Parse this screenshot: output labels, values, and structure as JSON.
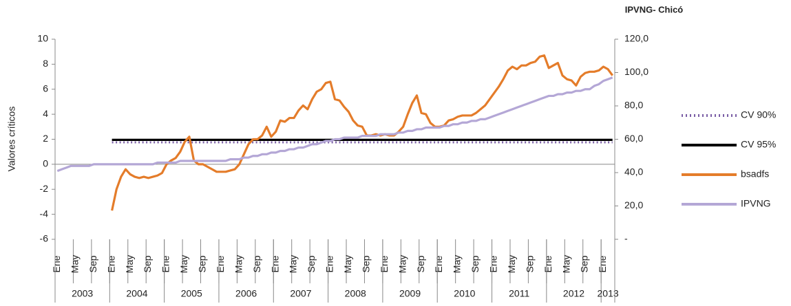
{
  "chart_data": {
    "type": "line",
    "title": "IPVNG- Chicó",
    "y_label": "Valores críticos",
    "categories": [
      "Ene",
      null,
      null,
      null,
      "May",
      null,
      null,
      null,
      "Sep",
      null,
      null,
      null,
      "Ene",
      null,
      null,
      null,
      "May",
      null,
      null,
      null,
      "Sep",
      null,
      null,
      null,
      "Ene",
      null,
      null,
      null,
      "May",
      null,
      null,
      null,
      "Sep",
      null,
      null,
      null,
      "Ene",
      null,
      null,
      null,
      "May",
      null,
      null,
      null,
      "Sep",
      null,
      null,
      null,
      "Ene",
      null,
      null,
      null,
      "May",
      null,
      null,
      null,
      "Sep",
      null,
      null,
      null,
      "Ene",
      null,
      null,
      null,
      "May",
      null,
      null,
      null,
      "Sep",
      null,
      null,
      null,
      "Ene",
      null,
      null,
      null,
      "May",
      null,
      null,
      null,
      "Sep",
      null,
      null,
      null,
      "Ene",
      null,
      null,
      null,
      "May",
      null,
      null,
      null,
      "Sep",
      null,
      null,
      null,
      "Ene",
      null,
      null,
      null,
      "May",
      null,
      null,
      null,
      "Sep",
      null,
      null,
      null,
      "Ene",
      null,
      null,
      null,
      "May",
      null,
      null,
      null,
      "Sep",
      null,
      null,
      null,
      "Ene",
      null,
      null
    ],
    "year_groups": [
      "2003",
      "2004",
      "2005",
      "2006",
      "2007",
      "2008",
      "2009",
      "2010",
      "2011",
      "2012",
      "2013"
    ],
    "ylim": [
      -6,
      10
    ],
    "yticks": [
      -6,
      -4,
      -2,
      0,
      2,
      4,
      6,
      8,
      10
    ],
    "y2lim": [
      0,
      120
    ],
    "y2ticks": [
      {
        "value": 0,
        "label": "-"
      },
      {
        "value": 20,
        "label": "20,0"
      },
      {
        "value": 40,
        "label": "40,0"
      },
      {
        "value": 60,
        "label": "60,0"
      },
      {
        "value": 80,
        "label": "80,0"
      },
      {
        "value": 100,
        "label": "100,0"
      },
      {
        "value": 120,
        "label": "120,0"
      }
    ],
    "legend": "right",
    "series": [
      {
        "name": "CV 90%",
        "color": "#7b5fa6",
        "dash": "dotted",
        "values": [
          null,
          null,
          null,
          null,
          null,
          null,
          null,
          null,
          null,
          null,
          null,
          null,
          1.75,
          1.75,
          1.75,
          1.75,
          1.75,
          1.75,
          1.75,
          1.75,
          1.75,
          1.75,
          1.75,
          1.75,
          1.75,
          1.75,
          1.75,
          1.75,
          1.75,
          1.75,
          1.75,
          1.75,
          1.75,
          1.75,
          1.75,
          1.75,
          1.75,
          1.75,
          1.75,
          1.75,
          1.75,
          1.75,
          1.75,
          1.75,
          1.75,
          1.75,
          1.75,
          1.75,
          1.75,
          1.75,
          1.75,
          1.75,
          1.75,
          1.75,
          1.75,
          1.75,
          1.75,
          1.75,
          1.75,
          1.75,
          1.75,
          1.75,
          1.75,
          1.75,
          1.75,
          1.75,
          1.75,
          1.75,
          1.75,
          1.75,
          1.75,
          1.75,
          1.75,
          1.75,
          1.75,
          1.75,
          1.75,
          1.75,
          1.75,
          1.75,
          1.75,
          1.75,
          1.75,
          1.75,
          1.75,
          1.75,
          1.75,
          1.75,
          1.75,
          1.75,
          1.75,
          1.75,
          1.75,
          1.75,
          1.75,
          1.75,
          1.75,
          1.75,
          1.75,
          1.75,
          1.75,
          1.75,
          1.75,
          1.75,
          1.75,
          1.75,
          1.75,
          1.75,
          1.75,
          1.75,
          1.75,
          1.75,
          1.75,
          1.75,
          1.75,
          1.75,
          1.75,
          1.75,
          1.75,
          1.75,
          1.75,
          1.75,
          1.75
        ]
      },
      {
        "name": "CV 95%",
        "color": "#000000",
        "values": [
          null,
          null,
          null,
          null,
          null,
          null,
          null,
          null,
          null,
          null,
          null,
          null,
          1.95,
          1.95,
          1.95,
          1.95,
          1.95,
          1.95,
          1.95,
          1.95,
          1.95,
          1.95,
          1.95,
          1.95,
          1.95,
          1.95,
          1.95,
          1.95,
          1.95,
          1.95,
          1.95,
          1.95,
          1.95,
          1.95,
          1.95,
          1.95,
          1.95,
          1.95,
          1.95,
          1.95,
          1.95,
          1.95,
          1.95,
          1.95,
          1.95,
          1.95,
          1.95,
          1.95,
          1.95,
          1.95,
          1.95,
          1.95,
          1.95,
          1.95,
          1.95,
          1.95,
          1.95,
          1.95,
          1.95,
          1.95,
          1.95,
          1.95,
          1.95,
          1.95,
          1.95,
          1.95,
          1.95,
          1.95,
          1.95,
          1.95,
          1.95,
          1.95,
          1.95,
          1.95,
          1.95,
          1.95,
          1.95,
          1.95,
          1.95,
          1.95,
          1.95,
          1.95,
          1.95,
          1.95,
          1.95,
          1.95,
          1.95,
          1.95,
          1.95,
          1.95,
          1.95,
          1.95,
          1.95,
          1.95,
          1.95,
          1.95,
          1.95,
          1.95,
          1.95,
          1.95,
          1.95,
          1.95,
          1.95,
          1.95,
          1.95,
          1.95,
          1.95,
          1.95,
          1.95,
          1.95,
          1.95,
          1.95,
          1.95,
          1.95,
          1.95,
          1.95,
          1.95,
          1.95,
          1.95,
          1.95,
          1.95,
          1.95,
          1.95
        ]
      },
      {
        "name": "bsadfs",
        "color": "#e47c2a",
        "values": [
          null,
          null,
          null,
          null,
          null,
          null,
          null,
          null,
          null,
          null,
          null,
          null,
          -3.7,
          -2.0,
          -1.0,
          -0.4,
          -0.8,
          -1.0,
          -1.1,
          -1.0,
          -1.1,
          -1.0,
          -0.9,
          -0.7,
          0.0,
          0.3,
          0.5,
          1.0,
          1.8,
          2.2,
          0.3,
          0.0,
          0.0,
          -0.2,
          -0.4,
          -0.6,
          -0.6,
          -0.6,
          -0.5,
          -0.4,
          0.0,
          0.8,
          1.6,
          2.0,
          2.0,
          2.3,
          3.0,
          2.2,
          2.6,
          3.5,
          3.4,
          3.7,
          3.7,
          4.3,
          4.7,
          4.4,
          5.2,
          5.8,
          6.0,
          6.5,
          6.6,
          5.2,
          5.1,
          4.6,
          4.2,
          3.5,
          3.1,
          3.0,
          2.3,
          2.3,
          2.4,
          2.3,
          2.4,
          2.3,
          2.3,
          2.6,
          3.0,
          4.0,
          4.9,
          5.5,
          4.1,
          4.0,
          3.3,
          3.0,
          3.0,
          3.1,
          3.5,
          3.6,
          3.8,
          3.9,
          3.9,
          3.9,
          4.1,
          4.4,
          4.7,
          5.2,
          5.7,
          6.2,
          6.8,
          7.5,
          7.8,
          7.6,
          7.9,
          7.9,
          8.1,
          8.2,
          8.6,
          8.7,
          7.7,
          7.9,
          8.1,
          7.1,
          6.8,
          6.7,
          6.3,
          7.0,
          7.3,
          7.4,
          7.4,
          7.5,
          7.8,
          7.6,
          7.1
        ]
      },
      {
        "name": "IPVNG",
        "color": "#b4a7d6",
        "axis": "y2",
        "values": [
          41,
          42,
          43,
          44,
          44,
          44,
          44,
          44,
          45,
          45,
          45,
          45,
          45,
          45,
          45,
          45,
          45,
          45,
          45,
          45,
          45,
          45,
          46,
          46,
          46,
          46,
          46,
          47,
          47,
          47,
          47,
          47,
          47,
          47,
          47,
          47,
          47,
          47,
          48,
          48,
          48,
          49,
          49,
          50,
          50,
          51,
          51,
          52,
          52,
          53,
          53,
          54,
          54,
          55,
          55,
          56,
          57,
          57,
          58,
          59,
          59,
          60,
          60,
          61,
          61,
          61,
          61,
          62,
          62,
          62,
          62,
          63,
          63,
          63,
          63,
          64,
          64,
          65,
          65,
          66,
          66,
          67,
          67,
          67,
          67,
          68,
          68,
          69,
          69,
          70,
          70,
          71,
          71,
          72,
          72,
          73,
          74,
          75,
          76,
          77,
          78,
          79,
          80,
          81,
          82,
          83,
          84,
          85,
          86,
          86,
          87,
          87,
          88,
          88,
          89,
          89,
          90,
          90,
          92,
          93,
          95,
          96,
          97
        ]
      }
    ]
  }
}
